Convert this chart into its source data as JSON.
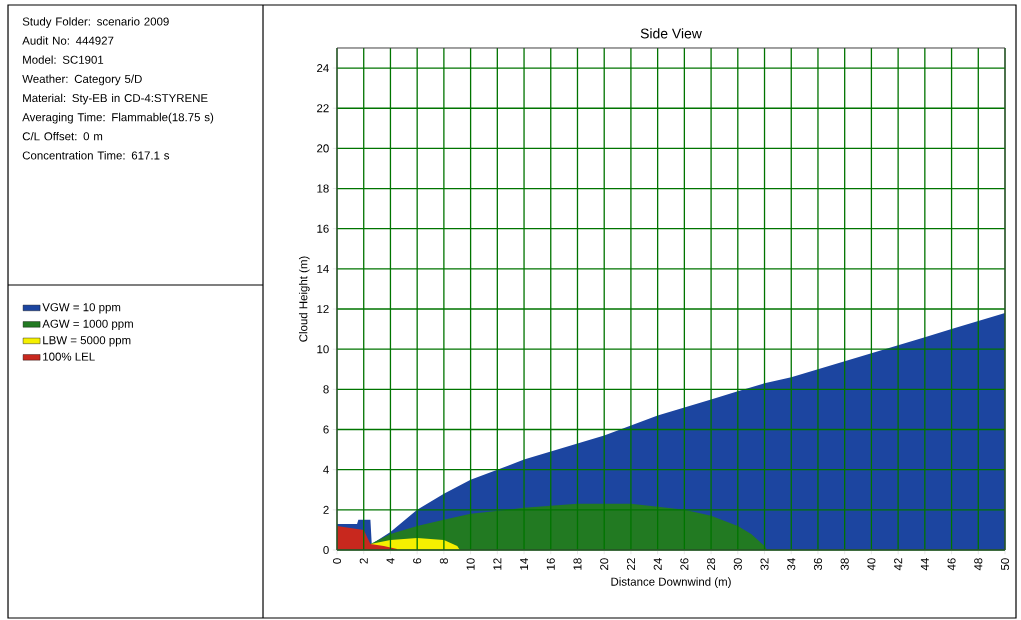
{
  "chart_data": {
    "type": "area",
    "title": "Side View",
    "xlabel": "Distance Downwind (m)",
    "ylabel": "Cloud Height (m)",
    "annotations": [
      "Study Folder: scenario 2009",
      "Audit No: 444927",
      "Model: SC1901",
      "Weather: Category 5/D",
      "Material: Sty-EB in CD-4:STYRENE",
      "Averaging Time: Flammable(18.75 s)",
      "C/L Offset: 0 m",
      "Concentration Time: 617.1 s"
    ],
    "series": [
      {
        "name": "VGW = 10 ppm",
        "color": "#1c45a0",
        "x": [
          0,
          1.5,
          1.6,
          2.5,
          2.6,
          4,
          6,
          8,
          10,
          12,
          14,
          16,
          18,
          20,
          22,
          24,
          26,
          28,
          30,
          32,
          34,
          36,
          38,
          40,
          42,
          44,
          46,
          48,
          50
        ],
        "values": [
          1.3,
          1.3,
          1.5,
          1.5,
          0.3,
          0.9,
          2.0,
          2.8,
          3.5,
          4.0,
          4.5,
          4.9,
          5.3,
          5.7,
          6.2,
          6.7,
          7.1,
          7.5,
          7.9,
          8.3,
          8.6,
          9.0,
          9.4,
          9.8,
          10.2,
          10.6,
          11.0,
          11.4,
          11.8
        ]
      },
      {
        "name": "AGW = 1000 ppm",
        "color": "#227a22",
        "x": [
          2.5,
          4,
          6,
          8,
          10,
          14,
          18,
          22,
          26,
          28,
          30,
          31,
          32,
          32.2
        ],
        "values": [
          0.3,
          0.8,
          1.2,
          1.5,
          1.8,
          2.1,
          2.3,
          2.3,
          2.0,
          1.7,
          1.2,
          0.8,
          0.2,
          0
        ]
      },
      {
        "name": "LBW = 5000 ppm",
        "color": "#f5f000",
        "x": [
          2.5,
          4,
          6,
          8,
          9,
          9.2
        ],
        "values": [
          0.3,
          0.5,
          0.6,
          0.5,
          0.2,
          0
        ]
      },
      {
        "name": "100% LEL",
        "color": "#c8281e",
        "x": [
          0,
          1,
          2,
          2.5,
          3.5,
          4.5
        ],
        "values": [
          1.2,
          1.1,
          1.0,
          0.3,
          0.2,
          0.05
        ]
      }
    ],
    "xlim": [
      0,
      50
    ],
    "ylim": [
      0,
      25
    ],
    "xticks": [
      0,
      2,
      4,
      6,
      8,
      10,
      12,
      14,
      16,
      18,
      20,
      22,
      24,
      26,
      28,
      30,
      32,
      34,
      36,
      38,
      40,
      42,
      44,
      46,
      48,
      50
    ],
    "yticks": [
      0,
      2,
      4,
      6,
      8,
      10,
      12,
      14,
      16,
      18,
      20,
      22,
      24
    ],
    "grid": true,
    "legend": "left"
  }
}
